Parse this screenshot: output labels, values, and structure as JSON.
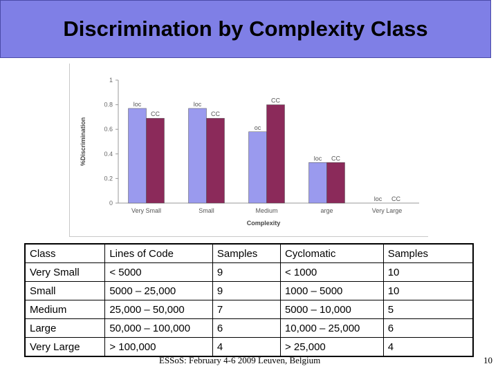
{
  "slide": {
    "title": "Discrimination by Complexity Class",
    "footer": "ESSoS: February 4-6 2009 Leuven, Belgium",
    "page_number": "10"
  },
  "colors": {
    "title_bg": "#7f7fe6",
    "loc_bar": "#9a9aee",
    "cc_bar": "#8b2a5a"
  },
  "chart_data": {
    "type": "bar",
    "categories": [
      "Very Small",
      "Small",
      "Medium",
      "arge",
      "Very Large"
    ],
    "series": [
      {
        "name": "loc",
        "values": [
          0.77,
          0.77,
          0.58,
          0.33,
          0
        ]
      },
      {
        "name": "CC",
        "values": [
          0.69,
          0.69,
          0.8,
          0.33,
          0
        ]
      }
    ],
    "bar_labels": [
      [
        "loc",
        "CC"
      ],
      [
        "loc",
        "CC"
      ],
      [
        "oc",
        "CC"
      ],
      [
        "loc",
        "CC"
      ],
      [
        "loc",
        "CC"
      ]
    ],
    "ylabel": "%Discrimination",
    "xlabel": "Complexity",
    "yticks": [
      "0",
      "0.2",
      "0.4",
      "0.6",
      "0.8",
      "1"
    ],
    "ylim": [
      0,
      1
    ],
    "grid": false
  },
  "table": {
    "header": [
      "Class",
      "Lines of Code",
      "Samples",
      "Cyclomatic",
      "Samples"
    ],
    "rows": [
      [
        "Very Small",
        "< 5000",
        "9",
        "< 1000",
        "10"
      ],
      [
        "Small",
        "5000 – 25,000",
        "9",
        "1000 – 5000",
        "10"
      ],
      [
        "Medium",
        "25,000 – 50,000",
        "7",
        "5000 – 10,000",
        "5"
      ],
      [
        "Large",
        "50,000 – 100,000",
        "6",
        "10,000 – 25,000",
        "6"
      ],
      [
        "Very Large",
        "> 100,000",
        "4",
        "> 25,000",
        "4"
      ]
    ]
  }
}
